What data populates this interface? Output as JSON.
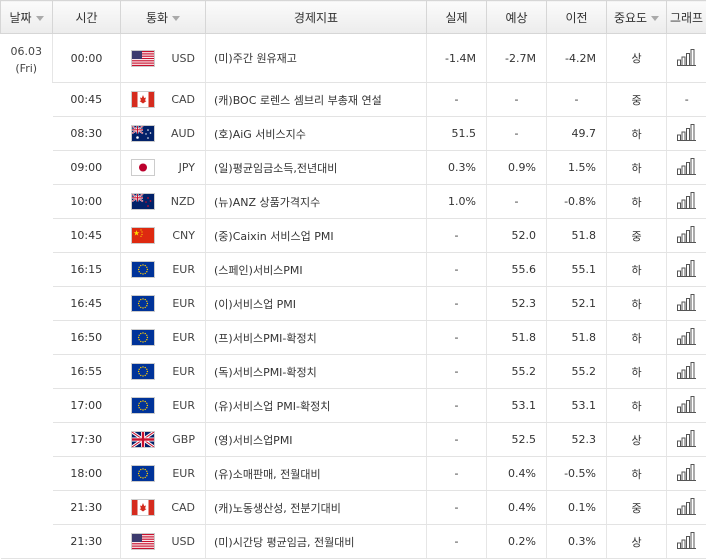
{
  "headers": {
    "date": "날짜",
    "time": "시간",
    "currency": "통화",
    "indicator": "경제지표",
    "actual": "실제",
    "forecast": "예상",
    "previous": "이전",
    "importance": "중요도",
    "graph": "그래프"
  },
  "date": {
    "day": "06.03",
    "weekday": "(Fri)"
  },
  "rows": [
    {
      "time": "00:00",
      "flag": "us",
      "currency": "USD",
      "indicator": "(미)주간 원유재고",
      "actual": "-1.4M",
      "forecast": "-2.7M",
      "previous": "-4.2M",
      "importance": "상",
      "graph": true
    },
    {
      "time": "00:45",
      "flag": "ca",
      "currency": "CAD",
      "indicator": "(캐)BOC 로렌스 셈브리 부총재 연설",
      "actual": "-",
      "forecast": "-",
      "previous": "-",
      "importance": "중",
      "graph": false
    },
    {
      "time": "08:30",
      "flag": "au",
      "currency": "AUD",
      "indicator": "(호)AiG 서비스지수",
      "actual": "51.5",
      "forecast": "-",
      "previous": "49.7",
      "importance": "하",
      "graph": true
    },
    {
      "time": "09:00",
      "flag": "jp",
      "currency": "JPY",
      "indicator": "(일)평균임금소득,전년대비",
      "actual": "0.3%",
      "forecast": "0.9%",
      "previous": "1.5%",
      "importance": "하",
      "graph": true
    },
    {
      "time": "10:00",
      "flag": "nz",
      "currency": "NZD",
      "indicator": "(뉴)ANZ 상품가격지수",
      "actual": "1.0%",
      "forecast": "-",
      "previous": "-0.8%",
      "importance": "하",
      "graph": true
    },
    {
      "time": "10:45",
      "flag": "cn",
      "currency": "CNY",
      "indicator": "(중)Caixin 서비스업 PMI",
      "actual": "-",
      "forecast": "52.0",
      "previous": "51.8",
      "importance": "중",
      "graph": true
    },
    {
      "time": "16:15",
      "flag": "eu",
      "currency": "EUR",
      "indicator": "(스페인)서비스PMI",
      "actual": "-",
      "forecast": "55.6",
      "previous": "55.1",
      "importance": "하",
      "graph": true
    },
    {
      "time": "16:45",
      "flag": "eu",
      "currency": "EUR",
      "indicator": "(이)서비스업 PMI",
      "actual": "-",
      "forecast": "52.3",
      "previous": "52.1",
      "importance": "하",
      "graph": true
    },
    {
      "time": "16:50",
      "flag": "eu",
      "currency": "EUR",
      "indicator": "(프)서비스PMI-확정치",
      "actual": "-",
      "forecast": "51.8",
      "previous": "51.8",
      "importance": "하",
      "graph": true
    },
    {
      "time": "16:55",
      "flag": "eu",
      "currency": "EUR",
      "indicator": "(독)서비스PMI-확정치",
      "actual": "-",
      "forecast": "55.2",
      "previous": "55.2",
      "importance": "하",
      "graph": true
    },
    {
      "time": "17:00",
      "flag": "eu",
      "currency": "EUR",
      "indicator": "(유)서비스업 PMI-확정치",
      "actual": "-",
      "forecast": "53.1",
      "previous": "53.1",
      "importance": "하",
      "graph": true
    },
    {
      "time": "17:30",
      "flag": "gb",
      "currency": "GBP",
      "indicator": "(영)서비스업PMI",
      "actual": "-",
      "forecast": "52.5",
      "previous": "52.3",
      "importance": "상",
      "graph": true
    },
    {
      "time": "18:00",
      "flag": "eu",
      "currency": "EUR",
      "indicator": "(유)소매판매, 전월대비",
      "actual": "-",
      "forecast": "0.4%",
      "previous": "-0.5%",
      "importance": "하",
      "graph": true
    },
    {
      "time": "21:30",
      "flag": "ca",
      "currency": "CAD",
      "indicator": "(캐)노동생산성, 전분기대비",
      "actual": "-",
      "forecast": "0.4%",
      "previous": "0.1%",
      "importance": "중",
      "graph": true
    },
    {
      "time": "21:30",
      "flag": "us",
      "currency": "USD",
      "indicator": "(미)시간당 평균임금, 전월대비",
      "actual": "-",
      "forecast": "0.2%",
      "previous": "0.3%",
      "importance": "상",
      "graph": true
    }
  ]
}
